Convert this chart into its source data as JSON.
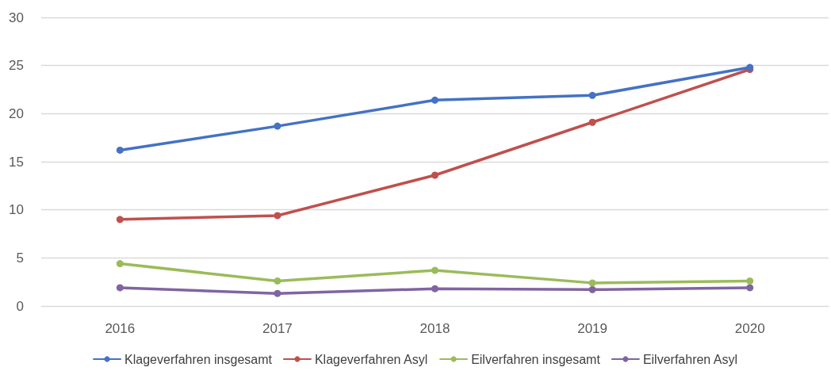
{
  "chart_data": {
    "type": "line",
    "categories": [
      "2016",
      "2017",
      "2018",
      "2019",
      "2020"
    ],
    "series": [
      {
        "name": "Klageverfahren insgesamt",
        "color": "#4472c4",
        "values": [
          16.2,
          18.7,
          21.4,
          21.9,
          24.8
        ]
      },
      {
        "name": "Klageverfahren Asyl",
        "color": "#c0504d",
        "values": [
          9.0,
          9.4,
          13.6,
          19.1,
          24.6
        ]
      },
      {
        "name": "Eilverfahren insgesamt",
        "color": "#9bbb59",
        "values": [
          4.4,
          2.6,
          3.7,
          2.4,
          2.6
        ]
      },
      {
        "name": "Eilverfahren Asyl",
        "color": "#8064a2",
        "values": [
          1.9,
          1.3,
          1.8,
          1.7,
          1.9
        ]
      }
    ],
    "ylim": [
      0,
      30
    ],
    "yticks": [
      0,
      5,
      10,
      15,
      20,
      25,
      30
    ],
    "grid": "y",
    "legend": "bottom",
    "marker": "circle",
    "line_style": "solid"
  }
}
